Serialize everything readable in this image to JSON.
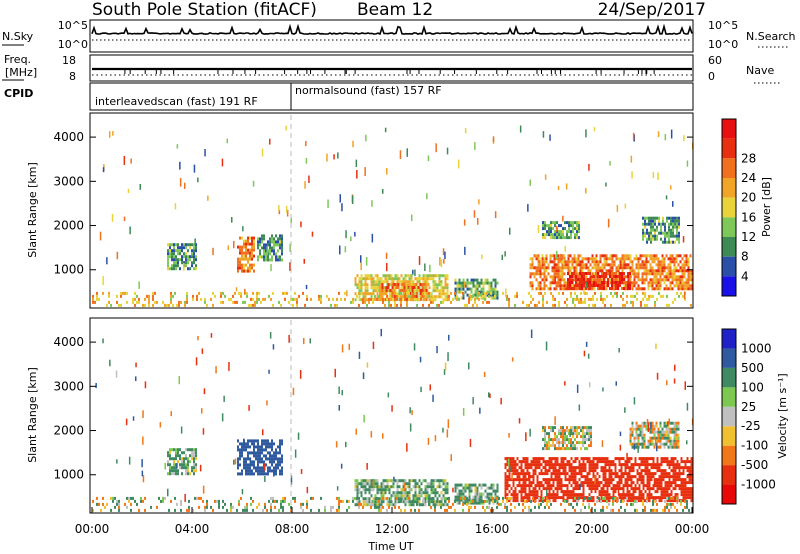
{
  "header": {
    "station": "South Pole Station (fitACF)",
    "beam": "Beam 12",
    "date": "24/Sep/2017"
  },
  "strip": {
    "nsky_label": "N.Sky",
    "nsky_ticks": [
      "10^5",
      "10^0"
    ],
    "nsearch_label": "N.Search",
    "nsearch_ticks": [
      "10^5",
      "10^0"
    ],
    "freq_label_1": "Freq.",
    "freq_label_2": "[MHz]",
    "freq_ticks": [
      "18",
      "8"
    ],
    "nave_label": "Nave",
    "nave_ticks": [
      "60",
      "0"
    ],
    "cpid_label": "CPID",
    "cpid_segments": [
      {
        "label": "interleavedscan (fast) 191 RF",
        "start_hour": 0,
        "end_hour": 8
      },
      {
        "label": "normalsound (fast) 157 RF",
        "start_hour": 8,
        "end_hour": 24
      }
    ]
  },
  "power_colorbar": {
    "label": "Power [dB]",
    "ticks": [
      "4",
      "8",
      "12",
      "16",
      "20",
      "24",
      "28"
    ],
    "colors": [
      "#1a10e8",
      "#2a4fa8",
      "#3e8a55",
      "#7ec85a",
      "#e8d43a",
      "#f0a428",
      "#f07020",
      "#e83010",
      "#e81010"
    ]
  },
  "velocity_colorbar": {
    "label": "Velocity [m s⁻¹]",
    "ticks": [
      "1000",
      "500",
      "100",
      "25",
      "-25",
      "-100",
      "-500",
      "-1000"
    ],
    "colors": [
      "#2020c8",
      "#2f5aa0",
      "#3f8a60",
      "#7cc850",
      "#c0c0c0",
      "#f0c030",
      "#f07818",
      "#e83010",
      "#e80808"
    ]
  },
  "chart_data": [
    {
      "type": "heatmap",
      "title": "",
      "xlabel": "",
      "ylabel": "Slant Range [km]",
      "xlim": [
        0,
        24
      ],
      "ylim": [
        180,
        4500
      ],
      "yticks": [
        1000,
        2000,
        3000,
        4000
      ],
      "quantity": "Power [dB]",
      "echo_regions": [
        {
          "t": [
            3.0,
            4.2
          ],
          "r": [
            1050,
            1600
          ],
          "value": 10
        },
        {
          "t": [
            5.8,
            6.5
          ],
          "r": [
            1000,
            1750
          ],
          "value": 22
        },
        {
          "t": [
            6.6,
            7.6
          ],
          "r": [
            1250,
            1800
          ],
          "value": 10
        },
        {
          "t": [
            10.5,
            14.2
          ],
          "r": [
            350,
            900
          ],
          "value": 16
        },
        {
          "t": [
            11.5,
            13.5
          ],
          "r": [
            350,
            700
          ],
          "value": 22
        },
        {
          "t": [
            14.5,
            16.2
          ],
          "r": [
            380,
            800
          ],
          "value": 10
        },
        {
          "t": [
            17.5,
            24.0
          ],
          "r": [
            550,
            1350
          ],
          "value": 22
        },
        {
          "t": [
            19.0,
            21.5
          ],
          "r": [
            550,
            950
          ],
          "value": 28
        },
        {
          "t": [
            18.0,
            19.5
          ],
          "r": [
            1700,
            2100
          ],
          "value": 10
        },
        {
          "t": [
            22.0,
            23.5
          ],
          "r": [
            1600,
            2200
          ],
          "value": 10
        },
        {
          "t": [
            0,
            24
          ],
          "r": [
            200,
            500
          ],
          "value": 18
        }
      ]
    },
    {
      "type": "heatmap",
      "title": "",
      "xlabel": "Time UT",
      "ylabel": "Slant Range [km]",
      "xlim": [
        0,
        24
      ],
      "ylim": [
        180,
        4500
      ],
      "xticks": [
        "00:00",
        "04:00",
        "08:00",
        "12:00",
        "16:00",
        "20:00",
        "00:00"
      ],
      "yticks": [
        1000,
        2000,
        3000,
        4000
      ],
      "quantity": "Velocity [m s⁻¹]",
      "echo_regions": [
        {
          "t": [
            3.0,
            4.2
          ],
          "r": [
            1050,
            1600
          ],
          "value": 100
        },
        {
          "t": [
            5.8,
            7.6
          ],
          "r": [
            1000,
            1800
          ],
          "value": 500
        },
        {
          "t": [
            10.5,
            14.2
          ],
          "r": [
            350,
            900
          ],
          "value": 100
        },
        {
          "t": [
            14.5,
            16.2
          ],
          "r": [
            380,
            800
          ],
          "value": 100
        },
        {
          "t": [
            16.5,
            24.0
          ],
          "r": [
            450,
            1400
          ],
          "value": -500
        },
        {
          "t": [
            18.0,
            20.0
          ],
          "r": [
            1600,
            2100
          ],
          "value": 0
        },
        {
          "t": [
            21.5,
            23.5
          ],
          "r": [
            1600,
            2200
          ],
          "value": 0
        },
        {
          "t": [
            0,
            24
          ],
          "r": [
            200,
            500
          ],
          "value": 0
        }
      ]
    }
  ]
}
